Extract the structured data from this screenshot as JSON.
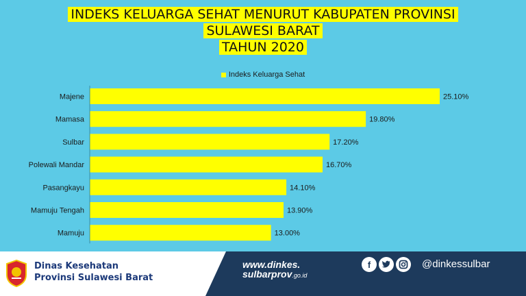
{
  "title": {
    "line1": "INDEKS KELUARGA SEHAT MENURUT KABUPATEN PROVINSI",
    "line2": "SULAWESI BARAT",
    "line3": "TAHUN 2020"
  },
  "chart_data": {
    "type": "bar",
    "orientation": "horizontal",
    "categories": [
      "Majene",
      "Mamasa",
      "Sulbar",
      "Polewali Mandar",
      "Pasangkayu",
      "Mamuju Tengah",
      "Mamuju"
    ],
    "series": [
      {
        "name": "Indeks Keluarga Sehat",
        "values": [
          25.1,
          19.8,
          17.2,
          16.7,
          14.1,
          13.9,
          13.0
        ]
      }
    ],
    "value_labels": [
      "25.10%",
      "19.80%",
      "17.20%",
      "16.70%",
      "14.10%",
      "13.90%",
      "13.00%"
    ],
    "xlim": [
      0,
      25.1
    ],
    "grid": false,
    "legend_position": "top",
    "bar_color": "#ffff00"
  },
  "footer": {
    "agency_line1": "Dinas Kesehatan",
    "agency_line2": "Provinsi Sulawesi Barat",
    "website_line1": "www.dinkes.",
    "website_line2": "sulbarprov",
    "website_tld": ".go.id",
    "social_icons": [
      "facebook-icon",
      "twitter-icon",
      "instagram-icon"
    ],
    "handle": "@dinkessulbar"
  }
}
